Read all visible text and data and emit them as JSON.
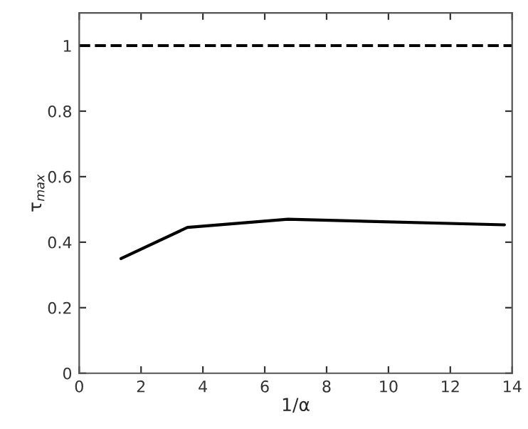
{
  "chart_data": {
    "type": "line",
    "xlabel": "1/α",
    "ylabel": "τ$_{max}$",
    "x": [
      1.35,
      3.5,
      6.75,
      13.75
    ],
    "series": [
      {
        "color": "#000000",
        "values": [
          0.35,
          0.445,
          0.47,
          0.453
        ]
      }
    ],
    "ref_lines": [
      {
        "axis": "y",
        "value": 1,
        "color": "#000000",
        "line_style": "dashed"
      }
    ],
    "xlim": [
      0,
      14
    ],
    "xticks": [
      0,
      2,
      4,
      6,
      8,
      10,
      12,
      14
    ],
    "ylim": [
      0,
      1.1
    ],
    "yticks": [
      0,
      0.2,
      0.4,
      0.6,
      0.8,
      1
    ],
    "grid": false,
    "marker": "none",
    "line_style": "solid"
  }
}
